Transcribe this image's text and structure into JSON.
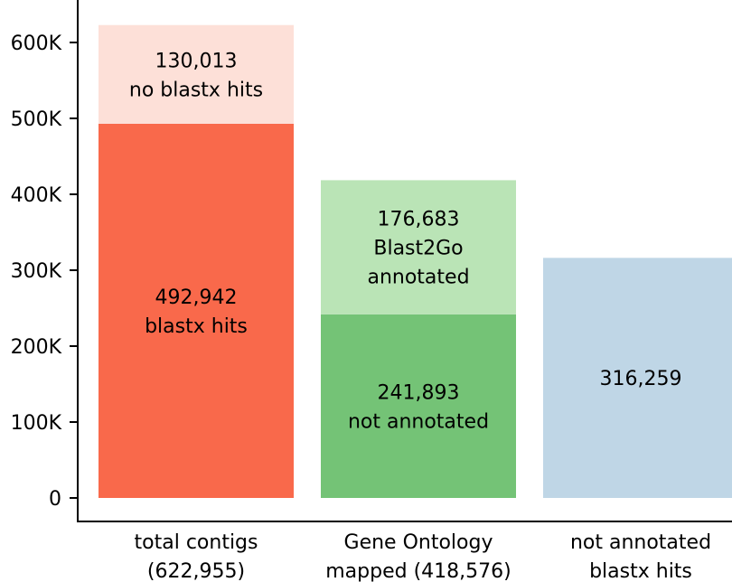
{
  "chart_data": {
    "type": "bar",
    "stacked": true,
    "ylim": [
      0,
      650000
    ],
    "yticks": [
      0,
      100000,
      200000,
      300000,
      400000,
      500000,
      600000
    ],
    "ytick_labels": [
      "0",
      "100K",
      "200K",
      "300K",
      "400K",
      "500K",
      "600K"
    ],
    "xlabel": "",
    "ylabel": "",
    "title": "",
    "grid": false,
    "bars": [
      {
        "category_lines": [
          "total contigs",
          "(622,955)"
        ],
        "segments": [
          {
            "value": 492942,
            "color": "#f9694b",
            "label_lines": [
              "492,942",
              "blastx hits"
            ]
          },
          {
            "value": 130013,
            "color": "#fde0d8",
            "label_lines": [
              "130,013",
              "no blastx hits"
            ]
          }
        ]
      },
      {
        "category_lines": [
          "Gene Ontology",
          "mapped (418,576)"
        ],
        "segments": [
          {
            "value": 241893,
            "color": "#74c376",
            "label_lines": [
              "241,893",
              "not annotated"
            ]
          },
          {
            "value": 176683,
            "color": "#bae4b6",
            "label_lines": [
              "176,683",
              "Blast2Go",
              "annotated"
            ]
          }
        ]
      },
      {
        "category_lines": [
          "not annotated",
          "blastx hits"
        ],
        "segments": [
          {
            "value": 316259,
            "color": "#bfd6e6",
            "label_lines": [
              "316,259"
            ]
          }
        ]
      }
    ]
  }
}
